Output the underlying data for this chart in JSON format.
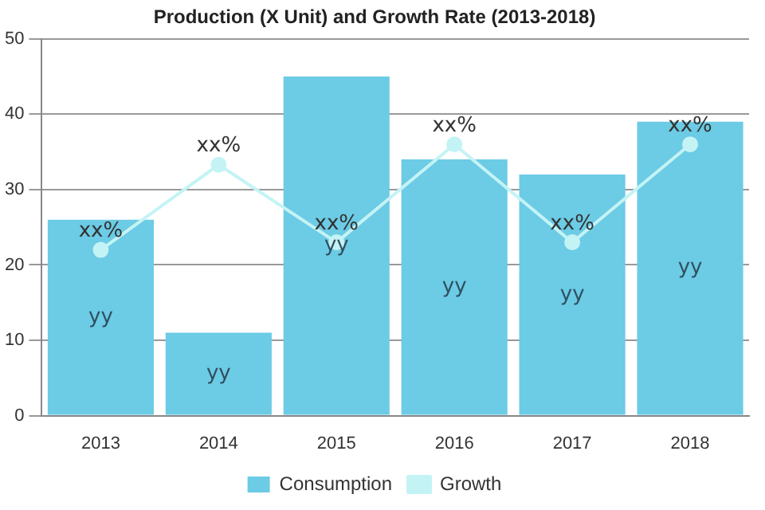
{
  "chart_data": {
    "type": "bar",
    "title": "Production (X Unit) and Growth Rate (2013-2018)",
    "categories": [
      "2013",
      "2014",
      "2015",
      "2016",
      "2017",
      "2018"
    ],
    "series": [
      {
        "name": "Consumption",
        "color": "#6ccbe5",
        "values": [
          26,
          11,
          45,
          34,
          32,
          39
        ],
        "value_labels": [
          "yy",
          "yy",
          "yy",
          "yy",
          "yy",
          "yy"
        ]
      },
      {
        "name": "Growth",
        "type": "line",
        "color": "#c4f3f5",
        "values": [
          22,
          33.3,
          23,
          36,
          23,
          36
        ],
        "value_labels": [
          "xx%",
          "xx%",
          "xx%",
          "xx%",
          "xx%",
          "xx%"
        ]
      }
    ],
    "ylim": [
      0,
      50
    ],
    "yticks": [
      0,
      10,
      20,
      30,
      40,
      50
    ],
    "grid": "y",
    "legend": "bottom",
    "marker": "circle"
  }
}
